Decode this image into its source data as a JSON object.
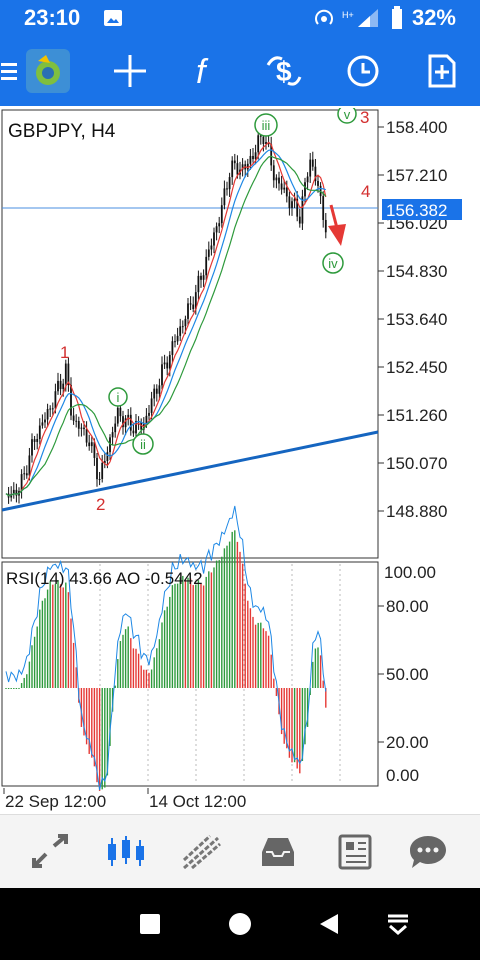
{
  "status": {
    "time": "23:10",
    "battery": "32%"
  },
  "toolbar": {
    "icons": [
      "menu-icon",
      "app-logo-icon",
      "crosshair-icon",
      "indicators-icon",
      "trade-icon",
      "clock-icon",
      "add-object-icon"
    ]
  },
  "colors": {
    "accent": "#1a73e8",
    "wave_label": "#d32f2f",
    "wave_circle": "#2e9a3c",
    "price_line": "#1976d2"
  },
  "chart": {
    "symbol_label": "GBPJPY, H4",
    "current_price": "156.382",
    "price_ticks": [
      "158.400",
      "157.210",
      "156.020",
      "154.830",
      "153.640",
      "152.450",
      "151.260",
      "150.070",
      "148.880"
    ],
    "wave_labels": [
      "1",
      "2",
      "3",
      "4"
    ],
    "wave_circles": [
      "i",
      "ii",
      "iii",
      "iv",
      "v"
    ],
    "osc_label": "RSI(14) 43.66 AO -0.5442",
    "osc_ticks": [
      "100.00",
      "80.00",
      "50.00",
      "20.00",
      "0.00"
    ],
    "time_ticks": [
      "22 Sep 12:00",
      "14 Oct 12:00"
    ]
  },
  "navbar": {
    "icons": [
      "quotes-icon",
      "chart-icon",
      "trade-icon",
      "history-icon",
      "news-icon",
      "chat-icon"
    ]
  }
}
